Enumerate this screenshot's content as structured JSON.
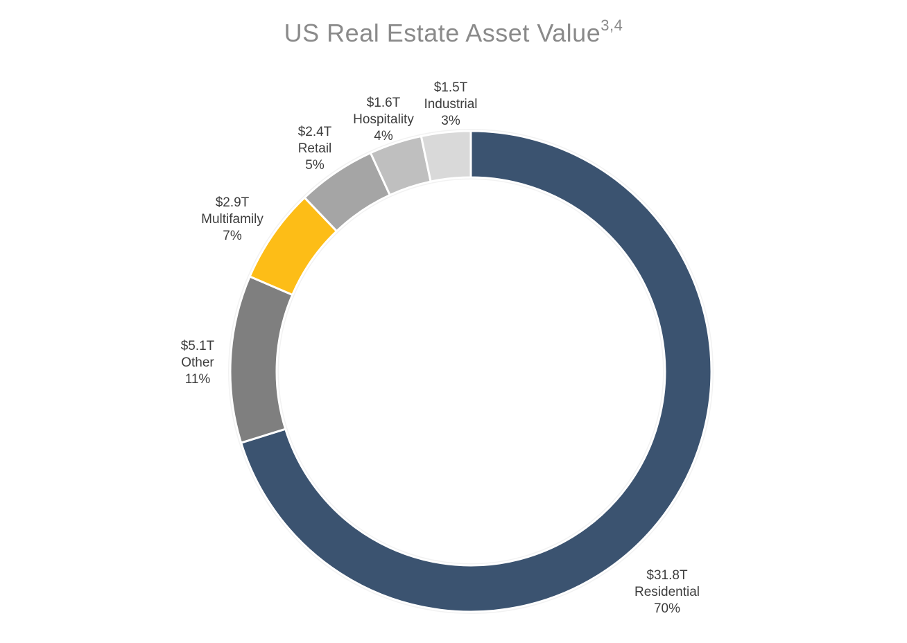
{
  "chart_data": {
    "type": "pie",
    "variant": "donut",
    "title": "US Real Estate Asset Value",
    "title_superscript": "3,4",
    "slices": [
      {
        "name": "Residential",
        "value_label": "$31.8T",
        "percent_label": "70%",
        "value": 31.8,
        "color": "#3b5370"
      },
      {
        "name": "Other",
        "value_label": "$5.1T",
        "percent_label": "11%",
        "value": 5.1,
        "color": "#7f7f7f"
      },
      {
        "name": "Multifamily",
        "value_label": "$2.9T",
        "percent_label": "7%",
        "value": 2.9,
        "color": "#fdbd17"
      },
      {
        "name": "Retail",
        "value_label": "$2.4T",
        "percent_label": "5%",
        "value": 2.4,
        "color": "#a5a5a5"
      },
      {
        "name": "Hospitality",
        "value_label": "$1.6T",
        "percent_label": "4%",
        "value": 1.6,
        "color": "#bfbfbf"
      },
      {
        "name": "Industrial",
        "value_label": "$1.5T",
        "percent_label": "3%",
        "value": 1.5,
        "color": "#d9d9d9"
      }
    ],
    "start_angle_deg": 0,
    "direction": "clockwise",
    "legend": "none",
    "data_labels": "outside"
  }
}
